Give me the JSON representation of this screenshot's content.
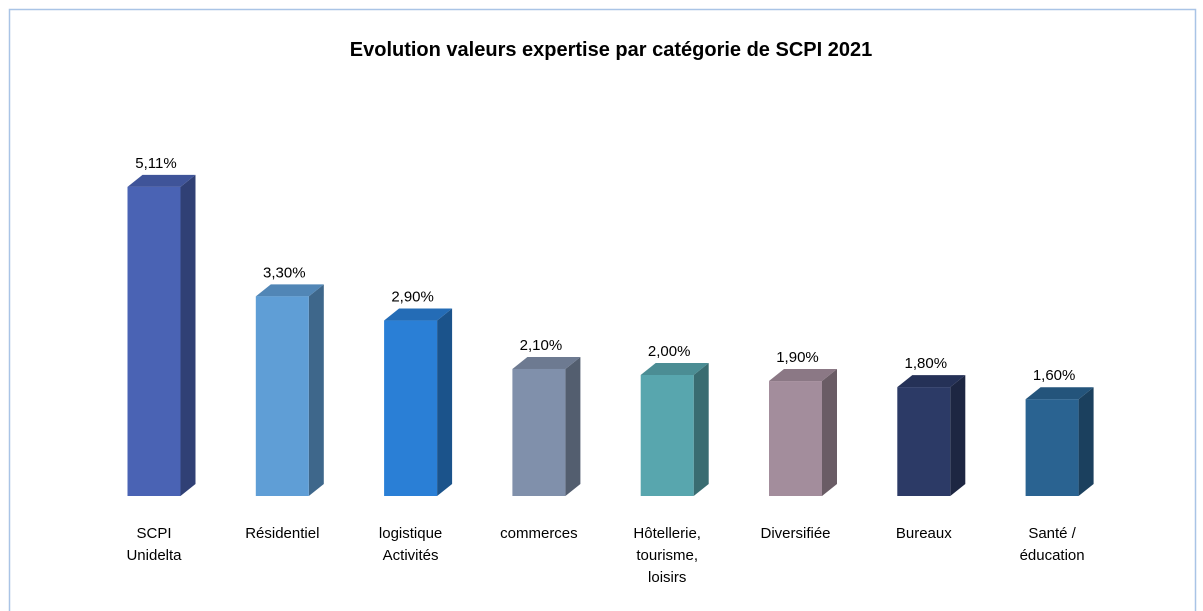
{
  "chart_data": {
    "type": "bar3d",
    "title": "Evolution valeurs expertise par catégorie de SCPI 2021",
    "categories": [
      "SCPI\nUnidelta",
      "Résidentiel",
      "logistique\nActivités",
      "commerces",
      "Hôtellerie,\ntourisme,\nloisirs",
      "Diversifiée",
      "Bureaux",
      "Santé /\néducation"
    ],
    "values": [
      5.11,
      3.3,
      2.9,
      2.1,
      2.0,
      1.9,
      1.8,
      1.6
    ],
    "value_labels": [
      "5,11%",
      "3,30%",
      "2,90%",
      "2,10%",
      "2,00%",
      "1,90%",
      "1,80%",
      "1,60%"
    ],
    "colors": [
      "#4a63b4",
      "#5f9ed6",
      "#2a7fd6",
      "#8090ab",
      "#58a6ae",
      "#a38d9c",
      "#2c3a66",
      "#2a6391"
    ]
  }
}
